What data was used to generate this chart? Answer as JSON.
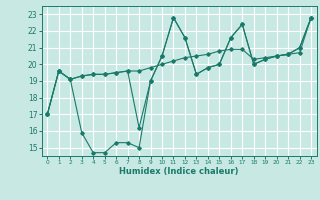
{
  "xlabel": "Humidex (Indice chaleur)",
  "xlim": [
    -0.5,
    23.5
  ],
  "ylim": [
    14.5,
    23.5
  ],
  "yticks": [
    15,
    16,
    17,
    18,
    19,
    20,
    21,
    22,
    23
  ],
  "xticks": [
    0,
    1,
    2,
    3,
    4,
    5,
    6,
    7,
    8,
    9,
    10,
    11,
    12,
    13,
    14,
    15,
    16,
    17,
    18,
    19,
    20,
    21,
    22,
    23
  ],
  "background_color": "#c8e8e4",
  "grid_color": "#ffffff",
  "line_color": "#1a7a6a",
  "series": [
    [
      17.0,
      19.6,
      19.1,
      15.9,
      14.7,
      14.7,
      15.3,
      15.3,
      15.0,
      19.0,
      20.5,
      22.8,
      21.6,
      19.4,
      19.8,
      20.0,
      21.6,
      22.4,
      20.0,
      20.3,
      20.5,
      20.6,
      21.0,
      22.8
    ],
    [
      17.0,
      19.6,
      19.1,
      19.3,
      19.4,
      19.4,
      19.5,
      19.6,
      19.6,
      19.8,
      20.0,
      20.2,
      20.4,
      20.5,
      20.6,
      20.8,
      20.9,
      20.9,
      20.3,
      20.4,
      20.5,
      20.6,
      20.7,
      22.8
    ],
    [
      17.0,
      19.6,
      19.1,
      19.3,
      19.4,
      19.4,
      19.5,
      19.6,
      16.2,
      19.0,
      20.5,
      22.8,
      21.6,
      19.4,
      19.8,
      20.0,
      21.6,
      22.4,
      20.0,
      20.3,
      20.5,
      20.6,
      21.0,
      22.8
    ]
  ]
}
